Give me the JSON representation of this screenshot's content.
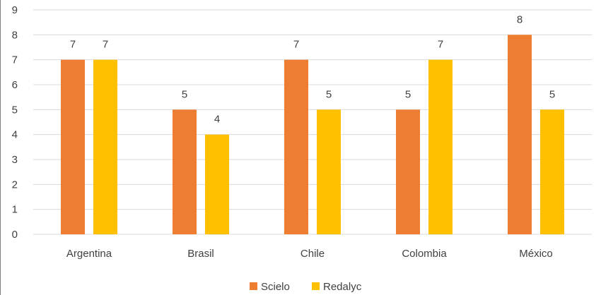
{
  "chart_data": {
    "type": "bar",
    "categories": [
      "Argentina",
      "Brasil",
      "Chile",
      "Colombia",
      "México"
    ],
    "series": [
      {
        "name": "Scielo",
        "values": [
          7,
          5,
          7,
          5,
          8
        ],
        "color": "#ED7D31"
      },
      {
        "name": "Redalyc",
        "values": [
          7,
          4,
          5,
          7,
          5
        ],
        "color": "#FFC000"
      }
    ],
    "ylim": [
      0,
      9
    ],
    "yticks": [
      "0",
      "1",
      "2",
      "3",
      "4",
      "5",
      "6",
      "7",
      "8",
      "9"
    ],
    "title": "",
    "xlabel": "",
    "ylabel": "",
    "grid": true,
    "gridline_color": "#d9d9d9",
    "data_labels": true,
    "legend_position": "bottom"
  }
}
